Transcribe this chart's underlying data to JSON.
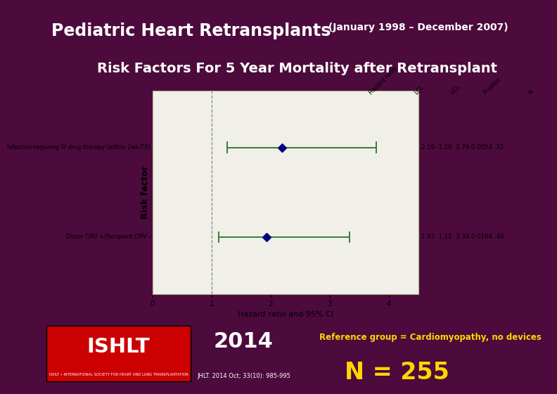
{
  "title_line1": "Pediatric Heart Retransplants",
  "title_line1_suffix": " (January 1998 – December 2007)",
  "title_line2": "Risk Factors For 5 Year Mortality after Retransplant",
  "background_color": "#4d0a3c",
  "plot_bg": "#f0f0e8",
  "plot_border_color": "#b0b890",
  "factors": [
    "Infection requiring IV drug therapy (within 2wk/TX)",
    "Donor CMV +/Recipient CMV -"
  ],
  "hazard_ratios": [
    2.19,
    1.93
  ],
  "lcl": [
    1.26,
    1.12
  ],
  "ucl": [
    3.79,
    3.34
  ],
  "p_values": [
    "0.0054",
    "0.0164"
  ],
  "n_values": [
    32,
    46
  ],
  "xlim": [
    0,
    4.5
  ],
  "xticks": [
    0,
    1,
    2,
    3,
    4
  ],
  "xlabel": "Hazard ratio and 95% CI",
  "ylabel": "Risk factor",
  "col_headers": [
    "Hazard ratio",
    "LCL",
    "UCL",
    "P-value",
    "N"
  ],
  "marker_color": "#000080",
  "ci_color": "#3a7a3a",
  "dashed_line_x": 1.0,
  "footer_year": "2014",
  "footer_ref": "JHLT. 2014 Oct; 33(10): 985-995",
  "footer_ref_text": "Reference group = Cardiomyopathy, no devices",
  "footer_n": "N = 255",
  "ishlt_red": "#cc0000",
  "ishlt_text": "ISHLT • INTERNATIONAL SOCIETY FOR HEART AND LUNG TRANSPLANTATION"
}
